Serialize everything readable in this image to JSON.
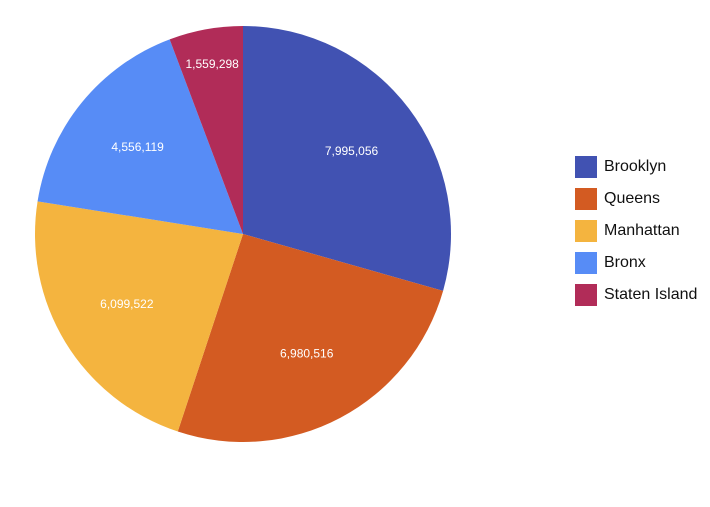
{
  "chart_data": {
    "type": "pie",
    "title": "",
    "categories": [
      "Brooklyn",
      "Queens",
      "Manhattan",
      "Bronx",
      "Staten Island"
    ],
    "values": [
      7995056,
      6980516,
      6099522,
      4556119,
      1559298
    ],
    "value_labels": [
      "7,995,056",
      "6,980,516",
      "6,099,522",
      "4,556,119",
      "1,559,298"
    ],
    "colors": [
      "#4152b2",
      "#d35b22",
      "#f4b43f",
      "#578cf6",
      "#b12c58"
    ],
    "start_angle": "12 o'clock",
    "direction": "clockwise",
    "legend_position": "right"
  }
}
